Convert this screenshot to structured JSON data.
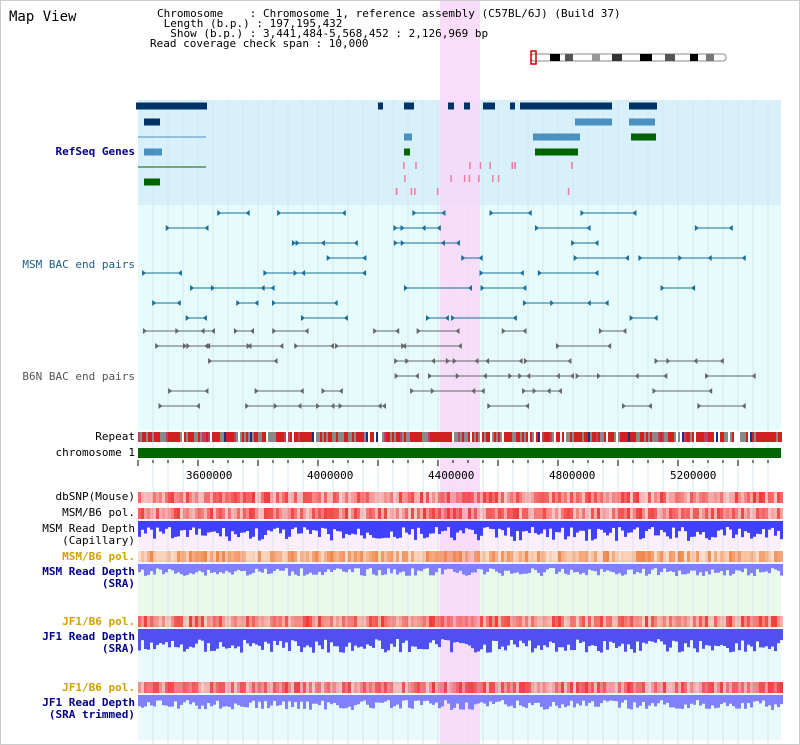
{
  "title": "Map View",
  "info": {
    "chromosome": "Chromosome    : Chromosome 1, reference assembly (C57BL/6J) (Build 37)",
    "length": " Length (b.p.) : 197,195,432",
    "show": "  Show (b.p.) : 3,441,484-5,568,452 : 2,126,969 bp",
    "coverage": "Read coverage check span : 10,000"
  },
  "tracks": {
    "refseq": "RefSeq Genes",
    "msm_bac": "MSM BAC end pairs",
    "b6n_bac": "B6N BAC end pairs",
    "repeat": "Repeat",
    "chromosome": "chromosome 1",
    "dbsnp": "dbSNP(Mouse)",
    "msm_b6_pol_1": "MSM/B6 pol.",
    "msm_read_depth_cap_1": "MSM Read Depth",
    "msm_read_depth_cap_2": "(Capillary)",
    "msm_b6_pol_2": "MSM/B6 pol.",
    "msm_read_depth_sra_1": "MSM Read Depth",
    "msm_read_depth_sra_2": "(SRA)",
    "jf1_b6_pol_1": "JF1/B6 pol.",
    "jf1_read_depth_sra_1": "JF1 Read Depth",
    "jf1_read_depth_sra_2": "(SRA)",
    "jf1_b6_pol_2": "JF1/B6 pol.",
    "jf1_read_depth_tr_1": "JF1 Read Depth",
    "jf1_read_depth_tr_2": "(SRA trimmed)"
  },
  "axis_ticks": [
    "3600000",
    "4000000",
    "4400000",
    "4800000",
    "5200000"
  ],
  "colors": {
    "refseq_bg": "#d8f0fa",
    "pale_cyan": "#e6fcfc",
    "highlight": "#f8d8f8",
    "gene_dark": "#003366",
    "gene_mid": "#4a90c0",
    "gene_green": "#006400",
    "msm_bac": "#1a6f9a",
    "b6n_bac": "#666666",
    "chromosome": "#006400",
    "depth_blue": "#4040ff",
    "depth_light": "#8080ff"
  }
}
